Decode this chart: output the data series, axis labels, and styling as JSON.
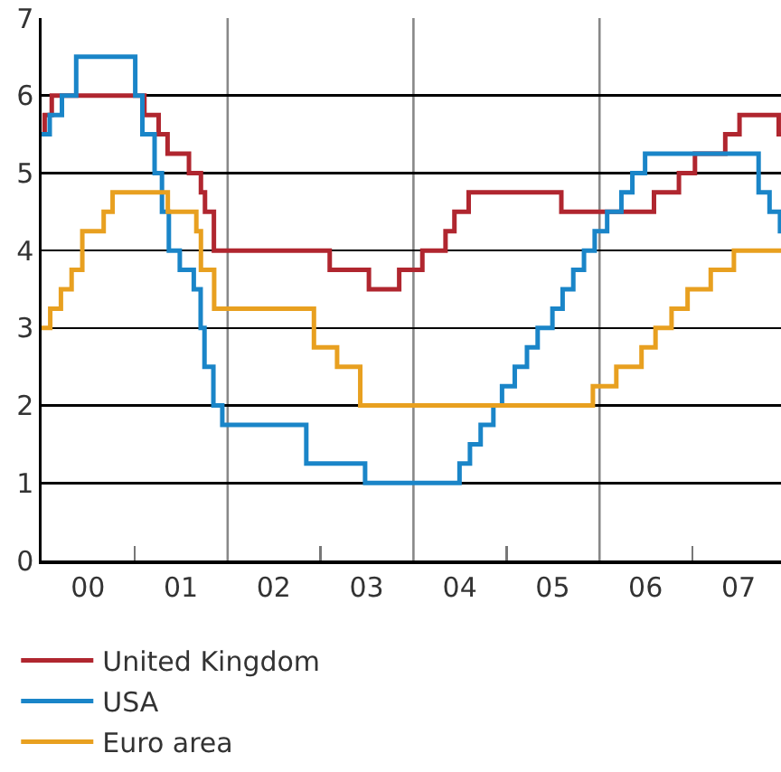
{
  "chart_data": {
    "type": "step",
    "xlim": [
      "2000-01-01",
      "2007-12-15"
    ],
    "ylim": [
      0,
      7
    ],
    "yticks": [
      0,
      1,
      2,
      3,
      4,
      5,
      6,
      7
    ],
    "xticks": [
      {
        "value": "2000-07-01",
        "label": "00"
      },
      {
        "value": "2001-07-01",
        "label": "01"
      },
      {
        "value": "2002-07-01",
        "label": "02"
      },
      {
        "value": "2003-07-01",
        "label": "03"
      },
      {
        "value": "2004-07-01",
        "label": "04"
      },
      {
        "value": "2005-07-01",
        "label": "05"
      },
      {
        "value": "2006-07-01",
        "label": "06"
      },
      {
        "value": "2007-07-01",
        "label": "07"
      },
      {
        "value": "2001-01-01",
        "label": null
      },
      {
        "value": "2003-01-01",
        "label": null
      },
      {
        "value": "2005-01-01",
        "label": null
      },
      {
        "value": "2007-01-01",
        "label": null
      }
    ],
    "grid": "y",
    "legend": "bottom",
    "ref_lines": [
      {
        "axis": "x",
        "value": "2002-01-01",
        "color": "#888888"
      },
      {
        "axis": "x",
        "value": "2004-01-01",
        "color": "#888888"
      },
      {
        "axis": "x",
        "value": "2006-01-01",
        "color": "#888888"
      }
    ],
    "series": [
      {
        "name": "United Kingdom",
        "color": "#b0262f",
        "x": [
          "2000-01-01",
          "2000-01-13",
          "2000-02-10",
          "2001-02-08",
          "2001-04-05",
          "2001-05-10",
          "2001-08-02",
          "2001-09-18",
          "2001-10-04",
          "2001-11-08",
          "2003-02-06",
          "2003-07-10",
          "2003-11-06",
          "2004-02-05",
          "2004-05-06",
          "2004-06-10",
          "2004-08-05",
          "2005-08-04",
          "2006-08-03",
          "2006-11-09",
          "2007-01-11",
          "2007-05-10",
          "2007-07-05",
          "2007-12-06",
          "2007-12-15"
        ],
        "values": [
          5.5,
          5.75,
          6,
          5.75,
          5.5,
          5.25,
          5,
          4.75,
          4.5,
          4,
          3.75,
          3.5,
          3.75,
          4,
          4.25,
          4.5,
          4.75,
          4.5,
          4.75,
          5,
          5.25,
          5.5,
          5.75,
          5.5,
          5.5
        ]
      },
      {
        "name": "USA",
        "color": "#1a85c8",
        "x": [
          "2000-01-01",
          "2000-02-02",
          "2000-03-21",
          "2000-05-16",
          "2001-01-03",
          "2001-01-31",
          "2001-03-20",
          "2001-04-18",
          "2001-05-15",
          "2001-06-27",
          "2001-08-21",
          "2001-09-17",
          "2001-10-02",
          "2001-11-06",
          "2001-12-11",
          "2002-11-06",
          "2003-06-25",
          "2004-06-30",
          "2004-08-10",
          "2004-09-21",
          "2004-11-10",
          "2004-12-14",
          "2005-02-02",
          "2005-03-22",
          "2005-05-03",
          "2005-06-30",
          "2005-08-09",
          "2005-09-20",
          "2005-11-01",
          "2005-12-13",
          "2006-01-31",
          "2006-03-28",
          "2006-05-10",
          "2006-06-29",
          "2007-09-18",
          "2007-10-31",
          "2007-12-11",
          "2007-12-15"
        ],
        "values": [
          5.5,
          5.75,
          6,
          6.5,
          6,
          5.5,
          5,
          4.5,
          4,
          3.75,
          3.5,
          3,
          2.5,
          2,
          1.75,
          1.25,
          1,
          1.25,
          1.5,
          1.75,
          2,
          2.25,
          2.5,
          2.75,
          3,
          3.25,
          3.5,
          3.75,
          4,
          4.25,
          4.5,
          4.75,
          5,
          5.25,
          4.75,
          4.5,
          4.25,
          4.25
        ]
      },
      {
        "name": "Euro area",
        "color": "#e8a020",
        "x": [
          "2000-01-01",
          "2000-02-04",
          "2000-03-17",
          "2000-04-28",
          "2000-06-09",
          "2000-09-01",
          "2000-10-06",
          "2001-05-11",
          "2001-08-31",
          "2001-09-18",
          "2001-11-09",
          "2002-12-06",
          "2003-03-07",
          "2003-06-06",
          "2005-12-06",
          "2006-03-08",
          "2006-06-15",
          "2006-08-09",
          "2006-10-11",
          "2006-12-13",
          "2007-03-14",
          "2007-06-13",
          "2007-12-15"
        ],
        "values": [
          3,
          3.25,
          3.5,
          3.75,
          4.25,
          4.5,
          4.75,
          4.5,
          4.25,
          3.75,
          3.25,
          2.75,
          2.5,
          2,
          2.25,
          2.5,
          2.75,
          3,
          3.25,
          3.5,
          3.75,
          4,
          4
        ]
      }
    ]
  }
}
